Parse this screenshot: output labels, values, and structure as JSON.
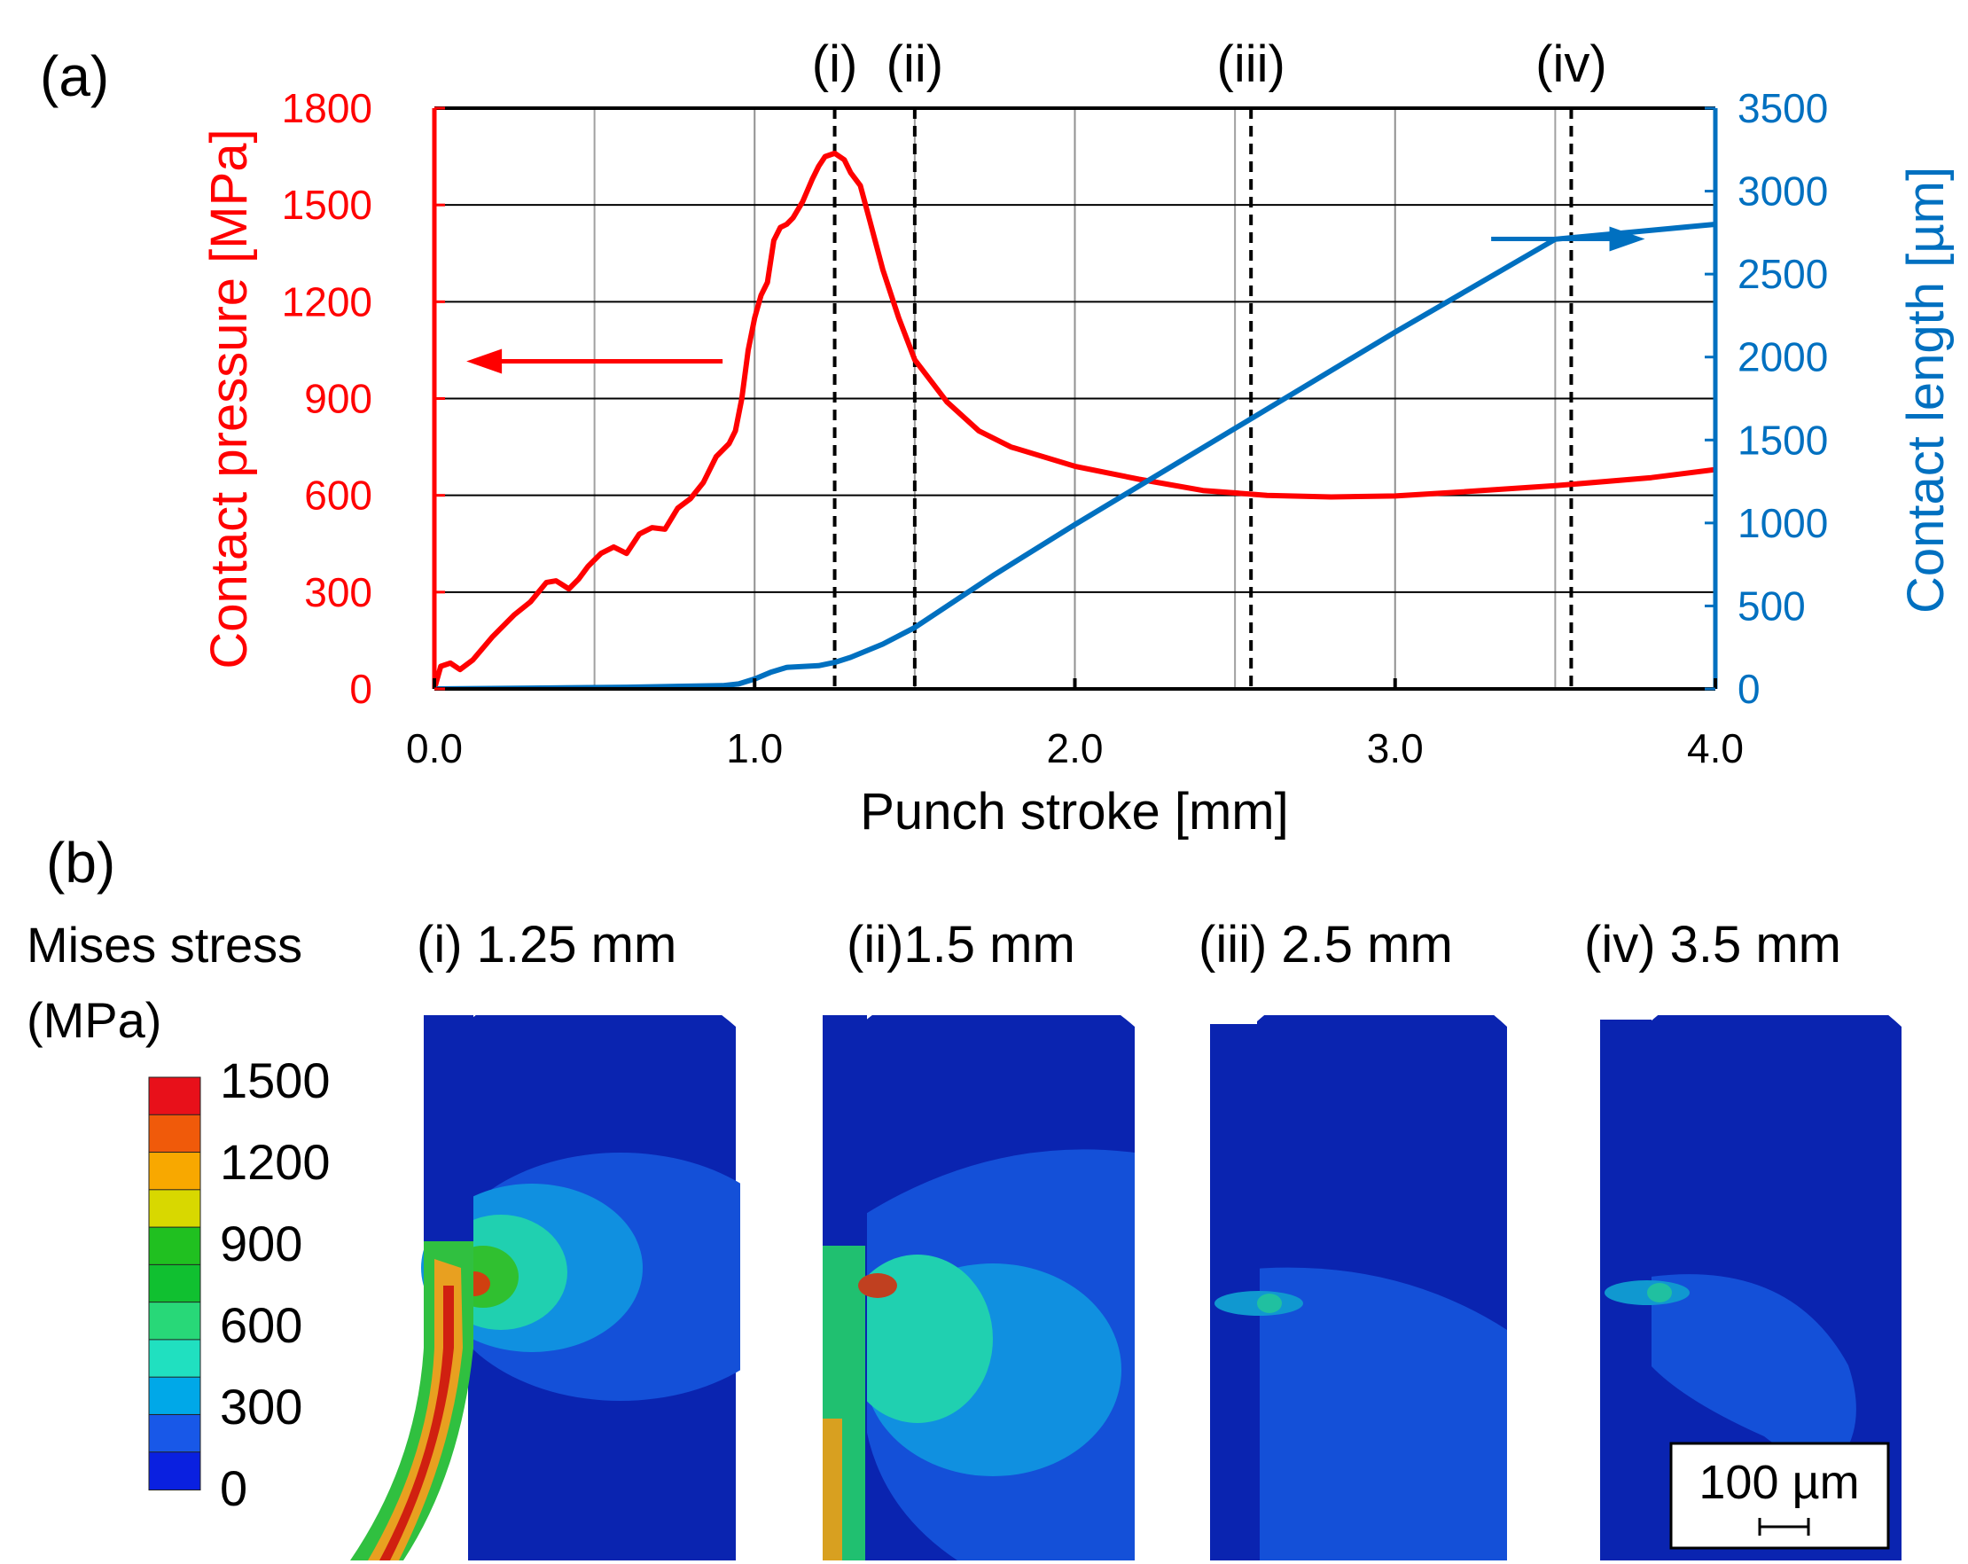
{
  "colors": {
    "pressure": "#ff0000",
    "length": "#0070c0",
    "grid": "#000000",
    "minor_grid": "#a0a0a0",
    "panel_bg": "#0a2ab0"
  },
  "chart_data": {
    "type": "line",
    "panel_label": "(a)",
    "xlabel": "Punch stroke [mm]",
    "ylabel_left": "Contact pressure [MPa]",
    "ylabel_right": "Contact length [µm]",
    "xlim": [
      0.0,
      4.0
    ],
    "ylim_left": [
      0,
      1800
    ],
    "ylim_right": [
      0,
      3500
    ],
    "x_ticks": [
      "0.0",
      "1.0",
      "2.0",
      "3.0",
      "4.0"
    ],
    "y_left_ticks": [
      "0",
      "300",
      "600",
      "900",
      "1200",
      "1500",
      "1800"
    ],
    "y_right_ticks": [
      "0",
      "500",
      "1000",
      "1500",
      "2000",
      "2500",
      "3000",
      "3500"
    ],
    "markers": [
      {
        "label": "(i)",
        "x": 1.25
      },
      {
        "label": "(ii)",
        "x": 1.5
      },
      {
        "label": "(iii)",
        "x": 2.55
      },
      {
        "label": "(iv)",
        "x": 3.55
      }
    ],
    "series": [
      {
        "name": "Contact pressure",
        "axis": "left",
        "x": [
          0.0,
          0.02,
          0.05,
          0.08,
          0.12,
          0.18,
          0.25,
          0.3,
          0.35,
          0.38,
          0.42,
          0.45,
          0.48,
          0.52,
          0.56,
          0.6,
          0.64,
          0.68,
          0.72,
          0.76,
          0.8,
          0.84,
          0.88,
          0.92,
          0.94,
          0.96,
          0.98,
          1.0,
          1.02,
          1.04,
          1.06,
          1.08,
          1.1,
          1.12,
          1.15,
          1.18,
          1.2,
          1.22,
          1.25,
          1.28,
          1.3,
          1.33,
          1.36,
          1.4,
          1.45,
          1.5,
          1.6,
          1.7,
          1.8,
          2.0,
          2.2,
          2.4,
          2.6,
          2.8,
          3.0,
          3.2,
          3.5,
          3.8,
          4.0
        ],
        "values": [
          0,
          70,
          80,
          60,
          90,
          160,
          230,
          270,
          330,
          335,
          310,
          340,
          380,
          420,
          440,
          420,
          480,
          500,
          495,
          560,
          590,
          640,
          720,
          760,
          800,
          900,
          1050,
          1150,
          1220,
          1260,
          1390,
          1430,
          1440,
          1460,
          1510,
          1580,
          1620,
          1650,
          1660,
          1640,
          1600,
          1560,
          1450,
          1300,
          1150,
          1020,
          890,
          800,
          750,
          690,
          650,
          615,
          600,
          595,
          598,
          610,
          630,
          655,
          680
        ]
      },
      {
        "name": "Contact length",
        "axis": "right",
        "x": [
          0.0,
          0.3,
          0.6,
          0.9,
          0.95,
          1.0,
          1.05,
          1.1,
          1.2,
          1.25,
          1.3,
          1.4,
          1.5,
          1.75,
          2.0,
          2.5,
          3.0,
          3.5,
          4.0
        ],
        "values": [
          0,
          5,
          10,
          20,
          30,
          60,
          100,
          130,
          140,
          160,
          190,
          270,
          370,
          690,
          990,
          1570,
          2150,
          2710,
          2800
        ]
      }
    ]
  },
  "panel_b": {
    "panel_label": "(b)",
    "legend_title_line1": "Mises stress",
    "legend_title_line2": "(MPa)",
    "legend_labels": [
      "1500",
      "1200",
      "900",
      "600",
      "300",
      "0"
    ],
    "legend_colors": [
      "#e8101a",
      "#f05a0a",
      "#f8a800",
      "#d8d800",
      "#20c020",
      "#10c030",
      "#28d878",
      "#20e0c0",
      "#00a8e8",
      "#1858e8",
      "#0a20e0"
    ],
    "snapshots": [
      {
        "label": "(i) 1.25 mm"
      },
      {
        "label": "(ii)1.5 mm"
      },
      {
        "label": "(iii) 2.5 mm"
      },
      {
        "label": "(iv) 3.5 mm"
      }
    ],
    "scale_bar_label": "100 µm"
  }
}
